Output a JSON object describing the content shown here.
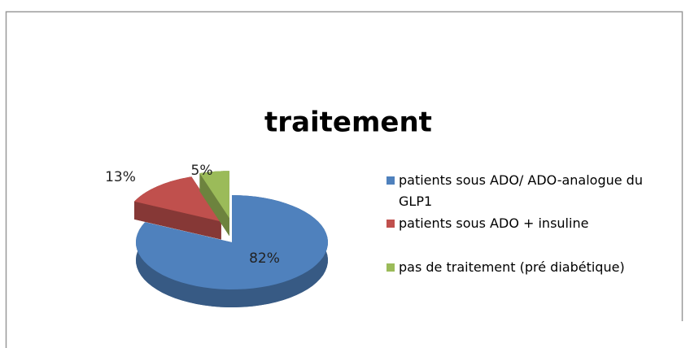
{
  "chart_data": {
    "type": "pie",
    "title": "traitement",
    "categories": [
      "patients sous ADO/ ADO-analogue du GLP1",
      "patients sous ADO + insuline",
      "pas de traitement (pré diabétique)"
    ],
    "values": [
      82,
      13,
      5
    ],
    "value_labels": [
      "82%",
      "13%",
      "5%"
    ],
    "colors": [
      "#4f81bd",
      "#c0504d",
      "#9bbb59"
    ],
    "legend": "right"
  }
}
